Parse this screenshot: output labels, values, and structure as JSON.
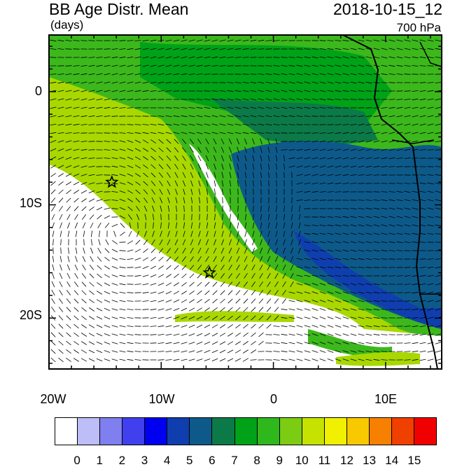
{
  "header": {
    "title": "BB Age Distr. Mean",
    "units": "(days)",
    "datetime": "2018-10-15_12",
    "level": "700 hPa"
  },
  "axes": {
    "lat_labels": [
      "0",
      "10S",
      "20S"
    ],
    "lon_labels": [
      "20W",
      "10W",
      "0",
      "10E"
    ]
  },
  "map": {
    "lon_range": [
      -20,
      15
    ],
    "lat_range": [
      -24.5,
      5
    ],
    "markers": [
      {
        "type": "star",
        "lon": -14.4,
        "lat": -8.0
      },
      {
        "type": "star",
        "lon": -5.7,
        "lat": -16.0
      }
    ]
  },
  "colorbar": {
    "labels": [
      "0",
      "1",
      "2",
      "3",
      "4",
      "5",
      "6",
      "7",
      "8",
      "9",
      "10",
      "11",
      "12",
      "13",
      "14",
      "15"
    ],
    "colors": [
      "#ffffff",
      "#bdbdf7",
      "#7f7fef",
      "#4040ef",
      "#0000f0",
      "#0f3fae",
      "#0d5a8a",
      "#0b7a48",
      "#00a218",
      "#2eb81c",
      "#7ccc14",
      "#c6e200",
      "#f0f000",
      "#f8c800",
      "#f88000",
      "#f04000",
      "#f00000"
    ]
  },
  "colors": {
    "green_dark": "#0b7a48",
    "green": "#3cb81c",
    "yellow_green": "#a8d800",
    "blue": "#0d5a8a"
  }
}
